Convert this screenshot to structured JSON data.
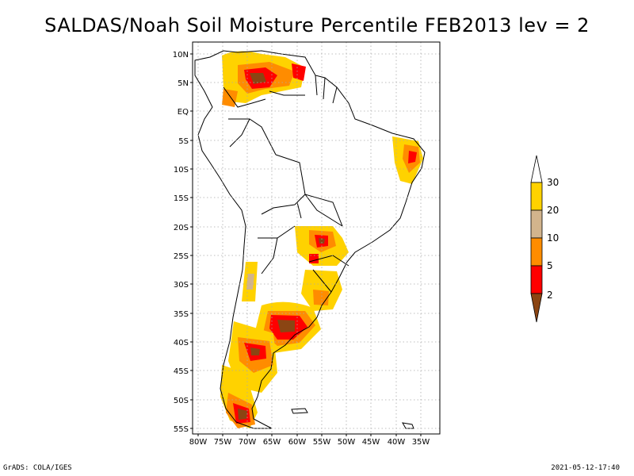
{
  "title": "SALDAS/Noah Soil Moisture Percentile FEB2013 lev = 2",
  "footer": {
    "left": "GrADS: COLA/IGES",
    "right": "2021-05-12-17:40"
  },
  "map": {
    "lat_labels": [
      "10N",
      "5N",
      "EQ",
      "5S",
      "10S",
      "15S",
      "20S",
      "25S",
      "30S",
      "35S",
      "40S",
      "45S",
      "50S",
      "55S"
    ],
    "lon_labels": [
      "80W",
      "75W",
      "70W",
      "65W",
      "60W",
      "55W",
      "50W",
      "45W",
      "40W",
      "35W"
    ]
  },
  "legend": {
    "labels": [
      "30",
      "20",
      "10",
      "5",
      "2"
    ],
    "colors": {
      "above30": "#ffffff",
      "c20_30": "#ffd200",
      "c10_20": "#d2b48c",
      "c5_10": "#ff8c00",
      "c2_5": "#ff0000",
      "below2": "#8b4513"
    }
  }
}
